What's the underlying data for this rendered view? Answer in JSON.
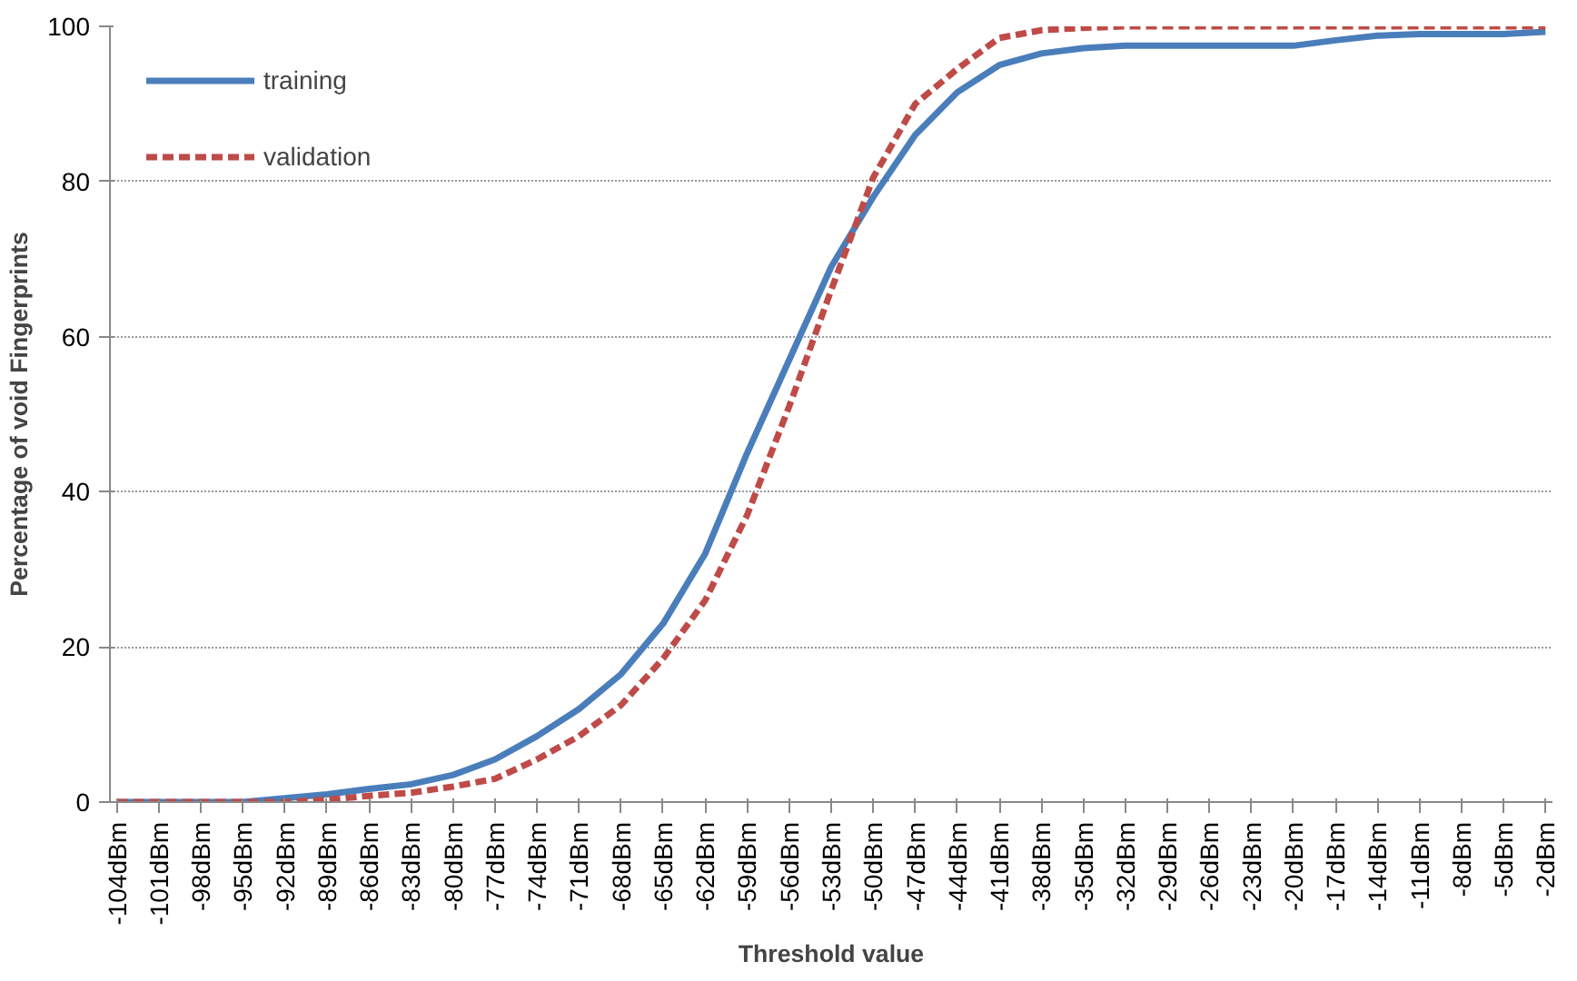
{
  "chart_data": {
    "type": "line",
    "xlabel": "Threshold value",
    "ylabel": "Percentage of void Fingerprints",
    "x": [
      -104,
      -101,
      -98,
      -95,
      -92,
      -89,
      -86,
      -83,
      -80,
      -77,
      -74,
      -71,
      -68,
      -65,
      -62,
      -59,
      -56,
      -53,
      -50,
      -47,
      -44,
      -41,
      -38,
      -35,
      -32,
      -29,
      -26,
      -23,
      -20,
      -17,
      -14,
      -11,
      -8,
      -5,
      -2
    ],
    "series": [
      {
        "name": "training",
        "color": "#4a7ebb",
        "line_style": "solid",
        "values": [
          0,
          0,
          0,
          0,
          0.5,
          1,
          1.7,
          2.3,
          3.5,
          5.5,
          8.5,
          12,
          16.5,
          23,
          32,
          45,
          57,
          69,
          78,
          86,
          91.5,
          95,
          96.5,
          97.2,
          97.5,
          97.5,
          97.5,
          97.5,
          97.5,
          98.2,
          98.8,
          99,
          99,
          99,
          99.3
        ]
      },
      {
        "name": "validation",
        "color": "#be4b48",
        "line_style": "dashed",
        "values": [
          0,
          0,
          0,
          0,
          0,
          0.3,
          0.8,
          1.2,
          2,
          3,
          5.5,
          8.5,
          12.5,
          18.5,
          26,
          37,
          51,
          66,
          80.5,
          90,
          94.5,
          98.5,
          99.5,
          99.8,
          100,
          100,
          100,
          100,
          100,
          100,
          100,
          100,
          100,
          100,
          100
        ]
      }
    ],
    "xlim": [
      -104.5,
      -1.5
    ],
    "xticks": [
      {
        "value": -104,
        "label": "-104dBm"
      },
      {
        "value": -101,
        "label": "-101dBm"
      },
      {
        "value": -98,
        "label": "-98dBm"
      },
      {
        "value": -95,
        "label": "-95dBm"
      },
      {
        "value": -92,
        "label": "-92dBm"
      },
      {
        "value": -89,
        "label": "-89dBm"
      },
      {
        "value": -86,
        "label": "-86dBm"
      },
      {
        "value": -83,
        "label": "-83dBm"
      },
      {
        "value": -80,
        "label": "-80dBm"
      },
      {
        "value": -77,
        "label": "-77dBm"
      },
      {
        "value": -74,
        "label": "-74dBm"
      },
      {
        "value": -71,
        "label": "-71dBm"
      },
      {
        "value": -68,
        "label": "-68dBm"
      },
      {
        "value": -65,
        "label": "-65dBm"
      },
      {
        "value": -62,
        "label": "-62dBm"
      },
      {
        "value": -59,
        "label": "-59dBm"
      },
      {
        "value": -56,
        "label": "-56dBm"
      },
      {
        "value": -53,
        "label": "-53dBm"
      },
      {
        "value": -50,
        "label": "-50dBm"
      },
      {
        "value": -47,
        "label": "-47dBm"
      },
      {
        "value": -44,
        "label": "-44dBm"
      },
      {
        "value": -41,
        "label": "-41dBm"
      },
      {
        "value": -38,
        "label": "-38dBm"
      },
      {
        "value": -35,
        "label": "-35dBm"
      },
      {
        "value": -32,
        "label": "-32dBm"
      },
      {
        "value": -29,
        "label": "-29dBm"
      },
      {
        "value": -26,
        "label": "-26dBm"
      },
      {
        "value": -23,
        "label": "-23dBm"
      },
      {
        "value": -20,
        "label": "-20dBm"
      },
      {
        "value": -17,
        "label": "-17dBm"
      },
      {
        "value": -14,
        "label": "-14dBm"
      },
      {
        "value": -11,
        "label": "-11dBm"
      },
      {
        "value": -8,
        "label": "-8dBm"
      },
      {
        "value": -5,
        "label": "-5dBm"
      },
      {
        "value": -2,
        "label": "-2dBm"
      }
    ],
    "ylim": [
      0,
      100
    ],
    "yticks": [
      0,
      20,
      40,
      60,
      80,
      100
    ],
    "grid": "y",
    "legend": "top left",
    "marker": "none"
  }
}
